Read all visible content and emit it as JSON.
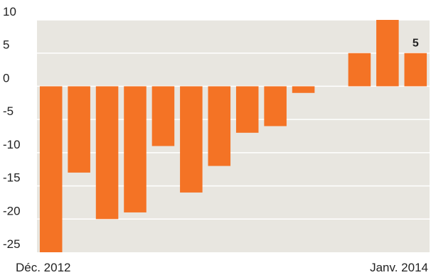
{
  "chart_data": {
    "type": "bar",
    "categories": [
      "Déc. 2012",
      "",
      "",
      "",
      "",
      "",
      "",
      "",
      "",
      "",
      "",
      "",
      "",
      "Janv. 2014"
    ],
    "values": [
      -25,
      -13,
      -20,
      -19,
      -9,
      -16,
      -12,
      -7,
      -6,
      -1,
      0,
      5,
      10,
      5
    ],
    "ylim": [
      -25,
      10
    ],
    "yticks": [
      10,
      5,
      0,
      -5,
      -10,
      -15,
      -20,
      -25
    ],
    "grid": true,
    "data_labels": [
      {
        "index": 13,
        "text": "5"
      }
    ],
    "x_axis_labels": {
      "first": "Déc. 2012",
      "last": "Janv. 2014"
    },
    "colors": {
      "bar": "#f47325",
      "plot_background": "#e8e6e0",
      "grid": "#ffffff"
    }
  }
}
